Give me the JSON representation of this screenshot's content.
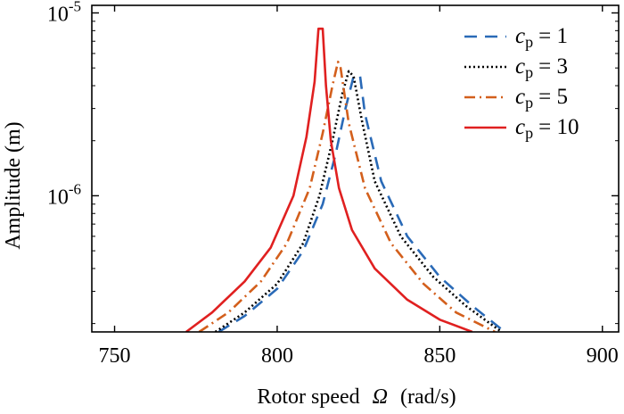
{
  "chart_data": {
    "type": "line",
    "xlabel_prefix": "Rotor speed",
    "xlabel_symbol": "Ω",
    "xlabel_unit": "(rad/s)",
    "ylabel": "Amplitude (m)",
    "xlim": [
      743,
      905
    ],
    "ylim": [
      1.8e-07,
      1.1e-05
    ],
    "yscale": "log",
    "x_ticks": [
      750,
      800,
      850,
      900
    ],
    "y_ticks": [
      {
        "value": 1e-06,
        "base": "10",
        "exp": "-6"
      },
      {
        "value": 1e-05,
        "base": "10",
        "exp": "-5"
      }
    ],
    "legend_position": "top-right",
    "series": [
      {
        "name": "c_p = 1",
        "label_var": "c",
        "label_sub": "p",
        "label_value": "= 1",
        "color": "#2a6ab7",
        "dash": "14,9",
        "x": [
          782,
          790,
          800,
          808,
          814,
          818,
          821,
          823.5,
          825.5,
          827,
          832,
          840,
          850,
          860,
          870
        ],
        "y": [
          1.8e-07,
          2.2e-07,
          3.1e-07,
          5e-07,
          9e-07,
          1.7e-06,
          3e-06,
          4.5e-06,
          4.5e-06,
          2.8e-06,
          1.2e-06,
          6e-07,
          3.6e-07,
          2.5e-07,
          1.8e-07
        ]
      },
      {
        "name": "c_p = 3",
        "label_var": "c",
        "label_sub": "p",
        "label_value": "= 3",
        "color": "#000000",
        "dash": "2,3",
        "x": [
          781,
          790,
          800,
          808,
          813,
          817,
          820,
          822,
          823.5,
          826,
          830,
          838,
          848,
          858,
          869
        ],
        "y": [
          1.8e-07,
          2.3e-07,
          3.3e-07,
          5.5e-07,
          1e-06,
          2e-06,
          3.6e-06,
          4.8e-06,
          4.5e-06,
          2.6e-06,
          1.2e-06,
          6e-07,
          3.6e-07,
          2.5e-07,
          1.8e-07
        ]
      },
      {
        "name": "c_p = 5",
        "label_var": "c",
        "label_sub": "p",
        "label_value": "= 5",
        "color": "#d35f1c",
        "dash": "12,5,2,5",
        "x": [
          776,
          785,
          795,
          803,
          810,
          814,
          817,
          818.7,
          819.5,
          822,
          827,
          835,
          845,
          855,
          867
        ],
        "y": [
          1.8e-07,
          2.3e-07,
          3.4e-07,
          5.5e-07,
          1.1e-06,
          2.2e-06,
          4e-06,
          5.4e-06,
          5e-06,
          2.5e-06,
          1.1e-06,
          5.5e-07,
          3.3e-07,
          2.3e-07,
          1.8e-07
        ]
      },
      {
        "name": "c_p = 10",
        "label_var": "c",
        "label_sub": "p",
        "label_value": "= 10",
        "color": "#e02020",
        "dash": "",
        "x": [
          772,
          780,
          790,
          798,
          805,
          809,
          811.5,
          812.7,
          814,
          815,
          816.5,
          819,
          823,
          830,
          840,
          850,
          860
        ],
        "y": [
          1.8e-07,
          2.3e-07,
          3.4e-07,
          5.2e-07,
          1e-06,
          2.1e-06,
          4.2e-06,
          8.2e-06,
          8.2e-06,
          4e-06,
          2e-06,
          1.1e-06,
          6.5e-07,
          4e-07,
          2.7e-07,
          2.1e-07,
          1.8e-07
        ]
      }
    ]
  }
}
